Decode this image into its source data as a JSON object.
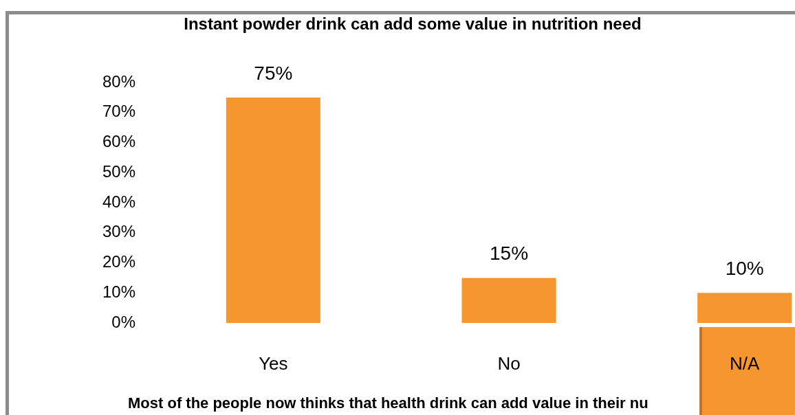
{
  "chart_data": {
    "type": "bar",
    "title": "Instant powder drink can add some value in nutrition need",
    "categories": [
      "Yes",
      "No",
      "N/A"
    ],
    "values": [
      75,
      15,
      10
    ],
    "color": "#f7962f",
    "value_labels": [
      "75%",
      "15%",
      "10%"
    ],
    "ylim": [
      0,
      80
    ],
    "yticks": [
      {
        "value": 0,
        "label": "0%"
      },
      {
        "value": 10,
        "label": "10%"
      },
      {
        "value": 20,
        "label": "20%"
      },
      {
        "value": 30,
        "label": "30%"
      },
      {
        "value": 40,
        "label": "40%"
      },
      {
        "value": 50,
        "label": "50%"
      },
      {
        "value": 60,
        "label": "60%"
      },
      {
        "value": 70,
        "label": "70%"
      },
      {
        "value": 80,
        "label": "80%"
      }
    ],
    "grid": false,
    "legend": false,
    "annotations": [
      "Most of the people now thinks that health drink can add value in their nu"
    ]
  }
}
